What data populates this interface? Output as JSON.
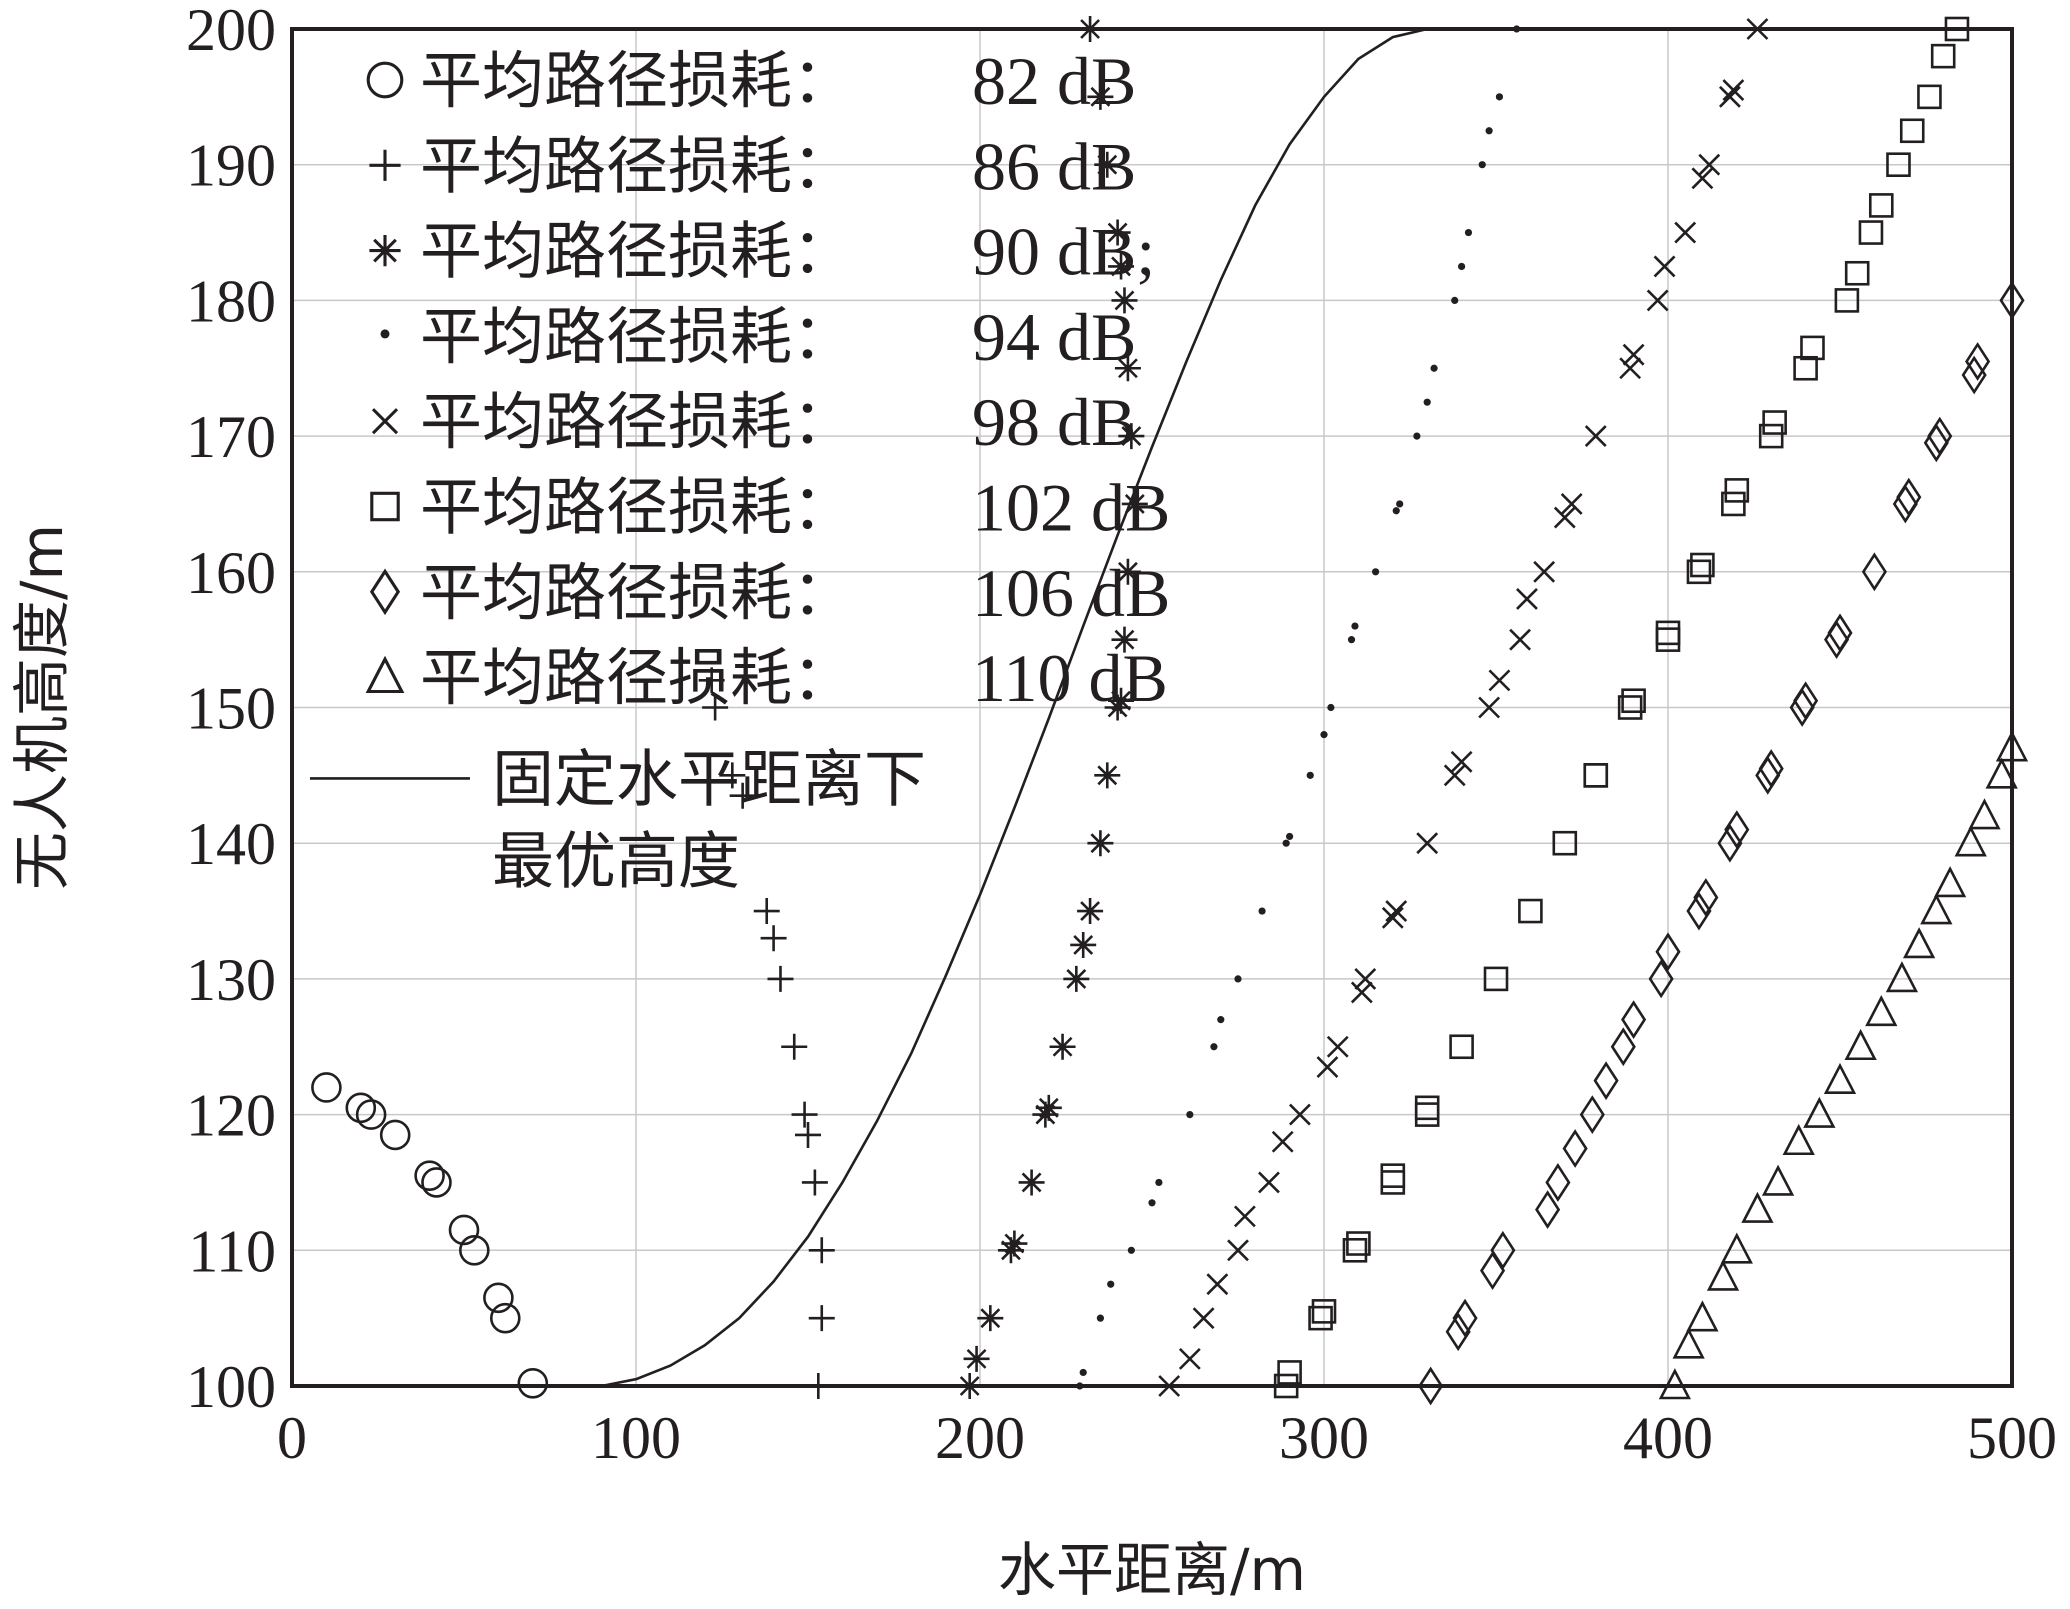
{
  "chart_data": {
    "type": "scatter",
    "xlabel": "水平距离/m",
    "ylabel": "无人机高度/m",
    "xlim": [
      0,
      500
    ],
    "ylim": [
      100,
      200
    ],
    "xticks": [
      "0",
      "100",
      "200",
      "300",
      "400",
      "500"
    ],
    "yticks": [
      "100",
      "110",
      "120",
      "130",
      "140",
      "150",
      "160",
      "170",
      "180",
      "190",
      "200"
    ],
    "grid": true,
    "legend_position": "top-left",
    "series": [
      {
        "name": "平均路径损耗：",
        "value_label": "82 dB",
        "marker": "circle",
        "points": [
          [
            10,
            122
          ],
          [
            20,
            120.5
          ],
          [
            23,
            120
          ],
          [
            30,
            118.5
          ],
          [
            40,
            115.5
          ],
          [
            42,
            115
          ],
          [
            50,
            111.5
          ],
          [
            53,
            110
          ],
          [
            60,
            106.5
          ],
          [
            62,
            105
          ],
          [
            70,
            100.2
          ]
        ]
      },
      {
        "name": "平均路径损耗：",
        "value_label": "86 dB",
        "marker": "plus",
        "points": [
          [
            122,
            152
          ],
          [
            123,
            150
          ],
          [
            128,
            145
          ],
          [
            131,
            143.5
          ],
          [
            138,
            135
          ],
          [
            140,
            133
          ],
          [
            142,
            130
          ],
          [
            146,
            125
          ],
          [
            149,
            120
          ],
          [
            150,
            118.5
          ],
          [
            152,
            115
          ],
          [
            154,
            110
          ],
          [
            154,
            105
          ],
          [
            153,
            100
          ]
        ]
      },
      {
        "name": "平均路径损耗：",
        "value_label": "90 dB;",
        "marker": "asterisk",
        "points": [
          [
            232,
            200
          ],
          [
            235,
            195
          ],
          [
            237,
            190
          ],
          [
            240,
            185
          ],
          [
            241,
            182.5
          ],
          [
            242,
            180
          ],
          [
            243,
            175
          ],
          [
            244,
            170
          ],
          [
            245,
            165
          ],
          [
            243,
            160
          ],
          [
            242,
            155
          ],
          [
            241,
            150.5
          ],
          [
            240,
            150
          ],
          [
            237,
            145
          ],
          [
            235,
            140
          ],
          [
            232,
            135
          ],
          [
            230,
            132.5
          ],
          [
            228,
            130
          ],
          [
            224,
            125
          ],
          [
            220,
            120.5
          ],
          [
            219,
            120
          ],
          [
            215,
            115
          ],
          [
            210,
            110.5
          ],
          [
            209,
            110
          ],
          [
            203,
            105
          ],
          [
            199,
            102
          ],
          [
            197,
            100
          ]
        ]
      },
      {
        "name": "平均路径损耗：",
        "value_label": "94 dB",
        "marker": "dot",
        "points": [
          [
            356,
            200
          ],
          [
            351,
            195
          ],
          [
            348,
            192.5
          ],
          [
            346,
            190
          ],
          [
            342,
            185
          ],
          [
            340,
            182.5
          ],
          [
            338,
            180
          ],
          [
            332,
            175
          ],
          [
            330,
            172.5
          ],
          [
            327,
            170
          ],
          [
            322,
            165
          ],
          [
            321,
            164.5
          ],
          [
            315,
            160
          ],
          [
            309,
            156
          ],
          [
            308,
            155
          ],
          [
            302,
            150
          ],
          [
            300,
            148
          ],
          [
            296,
            145
          ],
          [
            290,
            140.5
          ],
          [
            289,
            140
          ],
          [
            282,
            135
          ],
          [
            275,
            130
          ],
          [
            270,
            127
          ],
          [
            268,
            125
          ],
          [
            261,
            120
          ],
          [
            252,
            115
          ],
          [
            250,
            113.5
          ],
          [
            244,
            110
          ],
          [
            238,
            107.5
          ],
          [
            235,
            105
          ],
          [
            230,
            101
          ],
          [
            229,
            100
          ]
        ]
      },
      {
        "name": "平均路径损耗：",
        "value_label": "98 dB",
        "marker": "x",
        "points": [
          [
            426,
            200
          ],
          [
            419,
            195.5
          ],
          [
            418,
            195
          ],
          [
            412,
            190
          ],
          [
            410,
            189
          ],
          [
            405,
            185
          ],
          [
            399,
            182.5
          ],
          [
            397,
            180
          ],
          [
            390,
            176
          ],
          [
            389,
            175
          ],
          [
            379,
            170
          ],
          [
            372,
            165
          ],
          [
            370,
            164
          ],
          [
            364,
            160
          ],
          [
            359,
            158
          ],
          [
            357,
            155
          ],
          [
            351,
            152
          ],
          [
            348,
            150
          ],
          [
            340,
            146
          ],
          [
            338,
            145
          ],
          [
            330,
            140
          ],
          [
            321,
            135
          ],
          [
            320,
            134.5
          ],
          [
            312,
            130
          ],
          [
            311,
            129
          ],
          [
            304,
            125
          ],
          [
            301,
            123.5
          ],
          [
            293,
            120
          ],
          [
            288,
            118
          ],
          [
            284,
            115
          ],
          [
            277,
            112.5
          ],
          [
            275,
            110
          ],
          [
            269,
            107.5
          ],
          [
            265,
            105
          ],
          [
            261,
            102
          ],
          [
            255,
            100
          ]
        ]
      },
      {
        "name": "平均路径损耗：",
        "value_label": "102 dB",
        "marker": "square",
        "points": [
          [
            484,
            200
          ],
          [
            480,
            198
          ],
          [
            476,
            195
          ],
          [
            471,
            192.5
          ],
          [
            467,
            190
          ],
          [
            462,
            187
          ],
          [
            459,
            185
          ],
          [
            455,
            182
          ],
          [
            452,
            180
          ],
          [
            442,
            176.5
          ],
          [
            440,
            175
          ],
          [
            431,
            171
          ],
          [
            430,
            170
          ],
          [
            420,
            166
          ],
          [
            419,
            165
          ],
          [
            410,
            160.5
          ],
          [
            409,
            160
          ],
          [
            400,
            155.5
          ],
          [
            400,
            155
          ],
          [
            390,
            150.5
          ],
          [
            389,
            150
          ],
          [
            379,
            145
          ],
          [
            379,
            145
          ],
          [
            370,
            140
          ],
          [
            360,
            135
          ],
          [
            350,
            130
          ],
          [
            340,
            125
          ],
          [
            330,
            120.5
          ],
          [
            330,
            120
          ],
          [
            320,
            115.5
          ],
          [
            320,
            115
          ],
          [
            310,
            110.5
          ],
          [
            309,
            110
          ],
          [
            300,
            105.5
          ],
          [
            299,
            105
          ],
          [
            290,
            101
          ],
          [
            289,
            100
          ]
        ]
      },
      {
        "name": "平均路径损耗：",
        "value_label": "106 dB",
        "marker": "diamond",
        "points": [
          [
            500,
            180
          ],
          [
            490,
            175.5
          ],
          [
            489,
            174.5
          ],
          [
            479,
            170
          ],
          [
            478,
            169.5
          ],
          [
            470,
            165.5
          ],
          [
            469,
            165
          ],
          [
            460,
            160
          ],
          [
            450,
            155.5
          ],
          [
            449,
            155
          ],
          [
            440,
            150.5
          ],
          [
            439,
            150
          ],
          [
            430,
            145.5
          ],
          [
            429,
            145
          ],
          [
            420,
            141
          ],
          [
            418,
            140
          ],
          [
            411,
            136
          ],
          [
            409,
            135
          ],
          [
            400,
            132
          ],
          [
            398,
            130
          ],
          [
            390,
            127
          ],
          [
            387,
            125
          ],
          [
            382,
            122.5
          ],
          [
            378,
            120
          ],
          [
            373,
            117.5
          ],
          [
            368,
            115
          ],
          [
            365,
            113
          ],
          [
            352,
            110
          ],
          [
            349,
            108.5
          ],
          [
            341,
            105
          ],
          [
            339,
            104
          ],
          [
            331,
            100
          ]
        ]
      },
      {
        "name": "平均路径损耗：",
        "value_label": "110 dB",
        "marker": "triangle",
        "points": [
          [
            500,
            147
          ],
          [
            497,
            145
          ],
          [
            492,
            142
          ],
          [
            488,
            140
          ],
          [
            482,
            137
          ],
          [
            478,
            135
          ],
          [
            473,
            132.5
          ],
          [
            468,
            130
          ],
          [
            462,
            127.5
          ],
          [
            456,
            125
          ],
          [
            450,
            122.5
          ],
          [
            444,
            120
          ],
          [
            438,
            118
          ],
          [
            432,
            115
          ],
          [
            426,
            113
          ],
          [
            420,
            110
          ],
          [
            416,
            108
          ],
          [
            410,
            105
          ],
          [
            406,
            103
          ],
          [
            402,
            100
          ]
        ]
      }
    ],
    "curve": {
      "name": "固定水平距离下",
      "name_line2": "最优高度",
      "points": [
        [
          90,
          100
        ],
        [
          100,
          100.5
        ],
        [
          110,
          101.5
        ],
        [
          120,
          103
        ],
        [
          130,
          105
        ],
        [
          140,
          107.7
        ],
        [
          150,
          111
        ],
        [
          160,
          115
        ],
        [
          170,
          119.5
        ],
        [
          180,
          124.5
        ],
        [
          190,
          130.2
        ],
        [
          200,
          136.2
        ],
        [
          210,
          142.6
        ],
        [
          220,
          149.2
        ],
        [
          230,
          156
        ],
        [
          240,
          162.7
        ],
        [
          250,
          169.2
        ],
        [
          260,
          175.5
        ],
        [
          270,
          181.5
        ],
        [
          280,
          187
        ],
        [
          290,
          191.5
        ],
        [
          300,
          195
        ],
        [
          310,
          197.8
        ],
        [
          320,
          199.4
        ],
        [
          330,
          200
        ],
        [
          340,
          200
        ],
        [
          380,
          200
        ],
        [
          500,
          200
        ]
      ]
    }
  }
}
